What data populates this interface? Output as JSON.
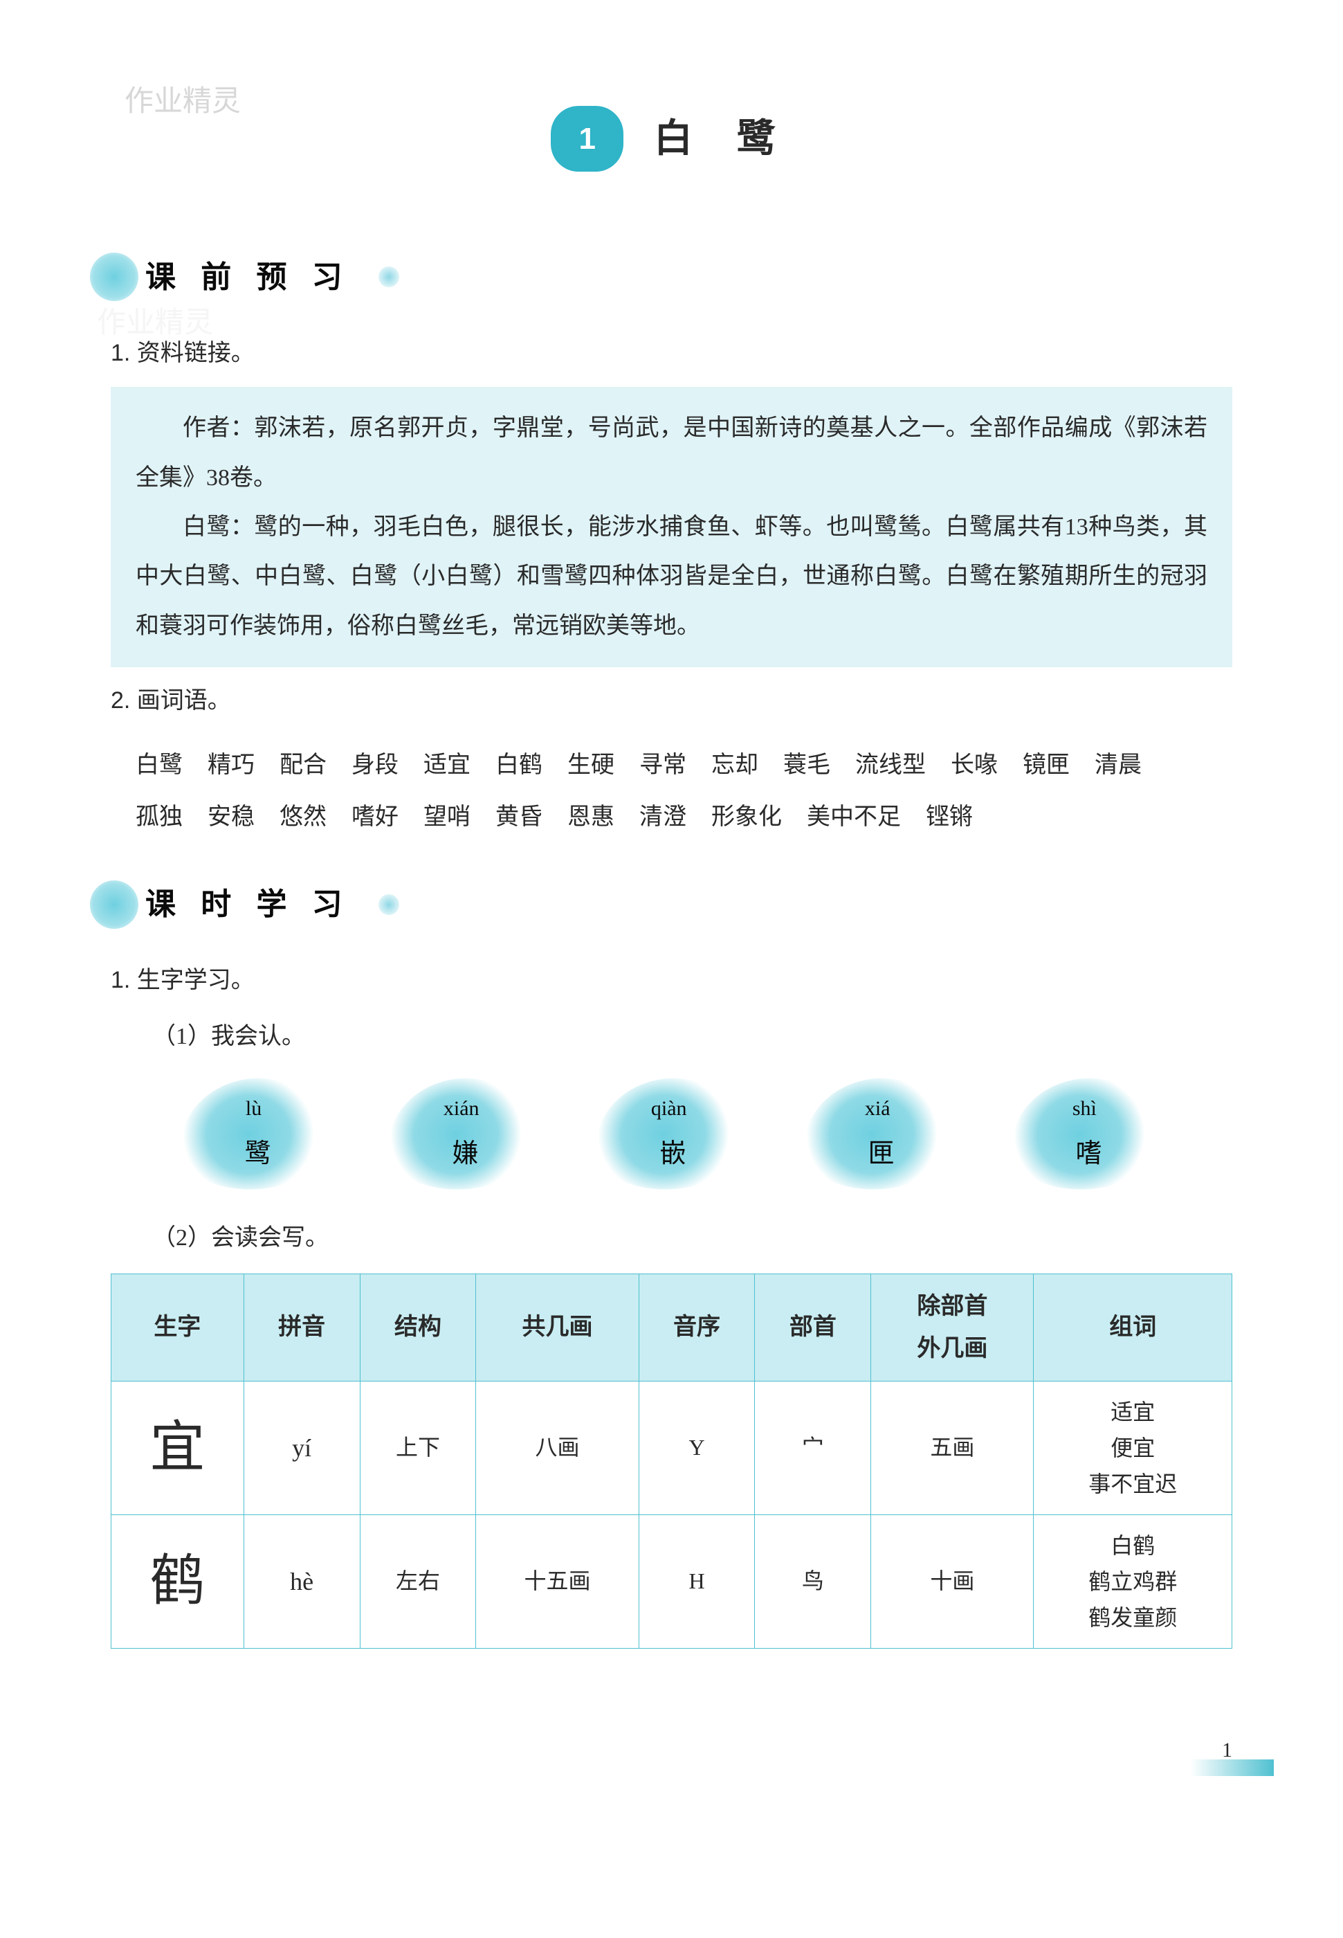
{
  "watermark": "作业精灵",
  "chapter": {
    "num": "1",
    "title": "白 鹭"
  },
  "section1": {
    "label": "课 前 预 习",
    "item1": {
      "title": "1. 资料链接。",
      "para1": "作者：郭沫若，原名郭开贞，字鼎堂，号尚武，是中国新诗的奠基人之一。全部作品编成《郭沫若全集》38卷。",
      "para2": "白鹭：鹭的一种，羽毛白色，腿很长，能涉水捕食鱼、虾等。也叫鹭鸶。白鹭属共有13种鸟类，其中大白鹭、中白鹭、白鹭（小白鹭）和雪鹭四种体羽皆是全白，世通称白鹭。白鹭在繁殖期所生的冠羽和蓑羽可作装饰用，俗称白鹭丝毛，常远销欧美等地。"
    },
    "item2": {
      "title": "2. 画词语。",
      "words": [
        "白鹭",
        "精巧",
        "配合",
        "身段",
        "适宜",
        "白鹤",
        "生硬",
        "寻常",
        "忘却",
        "蓑毛",
        "流线型",
        "长喙",
        "镜匣",
        "清晨",
        "孤独",
        "安稳",
        "悠然",
        "嗜好",
        "望哨",
        "黄昏",
        "恩惠",
        "清澄",
        "形象化",
        "美中不足",
        "铿锵"
      ]
    }
  },
  "section2": {
    "label": "课 时 学 习",
    "item1_title": "1. 生字学习。",
    "sub1": {
      "label": "（1）我会认。",
      "leaves": [
        {
          "pinyin": "lù",
          "hanzi": "鹭"
        },
        {
          "pinyin": "xián",
          "hanzi": "嫌"
        },
        {
          "pinyin": "qiàn",
          "hanzi": "嵌"
        },
        {
          "pinyin": "xiá",
          "hanzi": "匣"
        },
        {
          "pinyin": "shì",
          "hanzi": "嗜"
        }
      ]
    },
    "sub2": {
      "label": "（2）会读会写。",
      "headers": [
        "生字",
        "拼音",
        "结构",
        "共几画",
        "音序",
        "部首",
        "除部首外几画",
        "组词"
      ],
      "rows": [
        {
          "char": "宜",
          "pinyin": "yí",
          "struct": "上下",
          "strokes": "八画",
          "yinxu": "Y",
          "radical": "宀",
          "rest": "五画",
          "zuci": [
            "适宜",
            "便宜",
            "事不宜迟"
          ]
        },
        {
          "char": "鹤",
          "pinyin": "hè",
          "struct": "左右",
          "strokes": "十五画",
          "yinxu": "H",
          "radical": "鸟",
          "rest": "十画",
          "zuci": [
            "白鹤",
            "鹤立鸡群",
            "鹤发童颜"
          ]
        }
      ]
    }
  },
  "page_num": "1"
}
